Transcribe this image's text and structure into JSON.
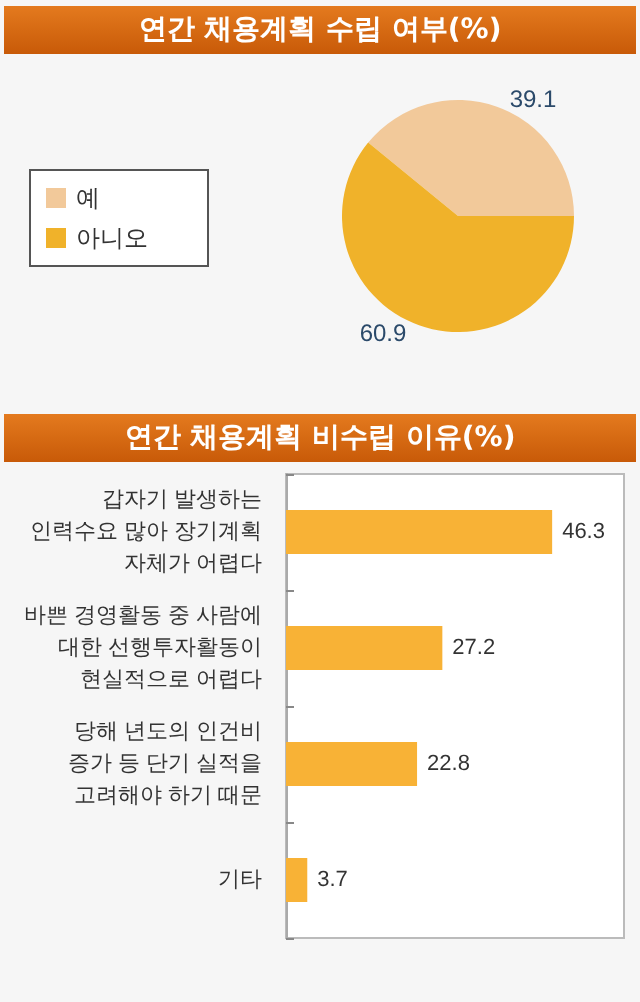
{
  "chart_data": [
    {
      "type": "pie",
      "title": "연간 채용계획 수립 여부(%)",
      "categories": [
        "예",
        "아니오"
      ],
      "values": [
        39.1,
        60.9
      ],
      "colors": [
        "#f2c99a",
        "#f0b22a"
      ],
      "legend": "left",
      "data_labels": true
    },
    {
      "type": "bar",
      "title": "연간 채용계획 비수립 이유(%)",
      "orientation": "horizontal",
      "categories": [
        "갑자기 발생하는\n인력수요 많아 장기계획\n자체가 어렵다",
        "바쁜 경영활동 중 사람에\n대한 선행투자활동이\n현실적으로 어렵다",
        "당해 년도의 인건비\n증가 등 단기 실적을\n고려해야 하기 때문",
        "기타"
      ],
      "series": [
        {
          "color": "#f8b236",
          "values": [
            46.3,
            27.2,
            22.8,
            3.7
          ]
        }
      ],
      "data_labels": true
    }
  ]
}
